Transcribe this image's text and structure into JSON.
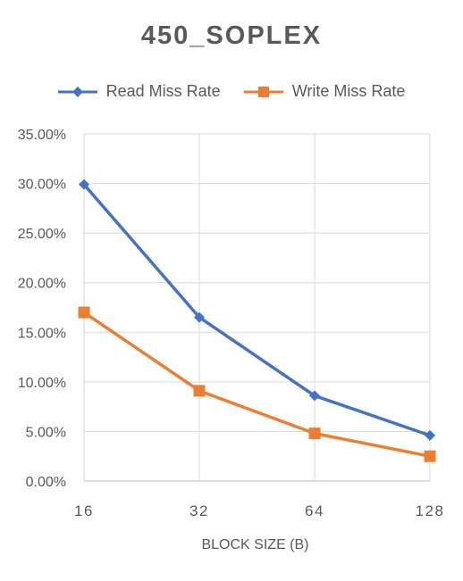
{
  "chart_data": {
    "type": "line",
    "title": "450_SOPLEX",
    "xlabel": "BLOCK SIZE (B)",
    "ylabel": "",
    "categories": [
      "16",
      "32",
      "64",
      "128"
    ],
    "ylim": [
      0,
      0.35
    ],
    "y_ticks": [
      0,
      0.05,
      0.1,
      0.15,
      0.2,
      0.25,
      0.3,
      0.35
    ],
    "y_tick_labels": [
      "0.00%",
      "5.00%",
      "10.00%",
      "15.00%",
      "20.00%",
      "25.00%",
      "30.00%",
      "35.00%"
    ],
    "grid": true,
    "legend_position": "top",
    "series": [
      {
        "name": "Read Miss Rate",
        "values": [
          0.299,
          0.165,
          0.086,
          0.046
        ],
        "color": "#4472C4",
        "marker": "diamond"
      },
      {
        "name": "Write Miss Rate",
        "values": [
          0.17,
          0.091,
          0.048,
          0.025
        ],
        "color": "#ED7D31",
        "marker": "square"
      }
    ]
  }
}
